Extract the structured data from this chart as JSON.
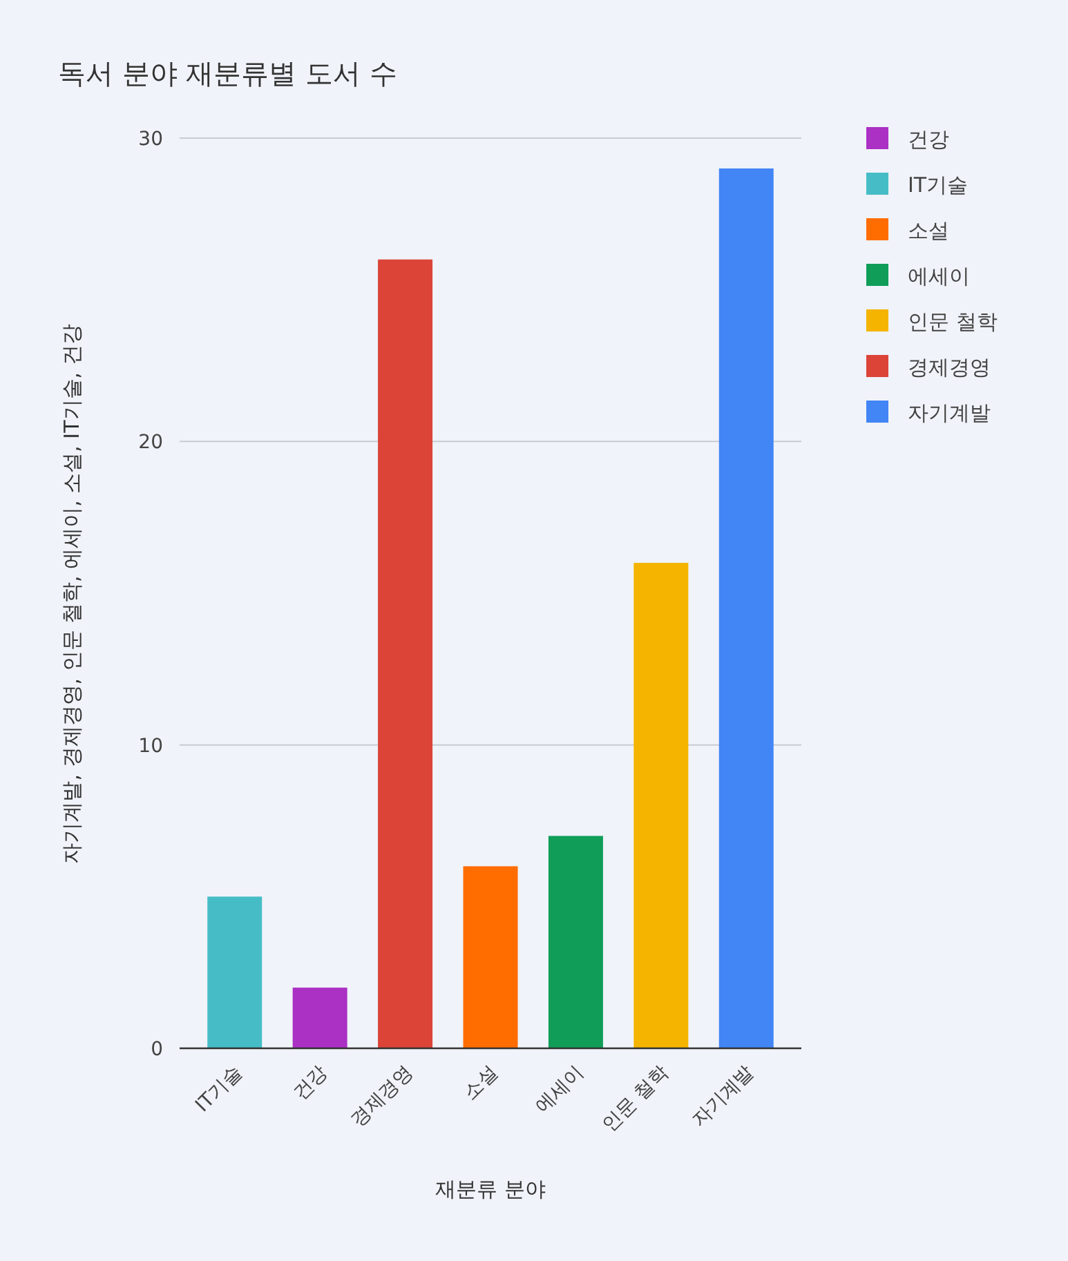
{
  "chart_data": {
    "type": "bar",
    "title": "독서 분야 재분류별 도서 수",
    "xlabel": "재분류 분야",
    "ylabel": "자기계발, 경제경영, 인문 철학, 에세이, 소설, IT기술, 건강",
    "categories": [
      "IT기술",
      "건강",
      "경제경영",
      "소설",
      "에세이",
      "인문 철학",
      "자기계발"
    ],
    "series": [
      {
        "name": "건강",
        "color": "#ab30c4",
        "values": [
          null,
          2,
          null,
          null,
          null,
          null,
          null
        ]
      },
      {
        "name": "IT기술",
        "color": "#46bdc6",
        "values": [
          5,
          null,
          null,
          null,
          null,
          null,
          null
        ]
      },
      {
        "name": "소설",
        "color": "#ff6d01",
        "values": [
          null,
          null,
          null,
          6,
          null,
          null,
          null
        ]
      },
      {
        "name": "에세이",
        "color": "#0f9d58",
        "values": [
          null,
          null,
          null,
          null,
          7,
          null,
          null
        ]
      },
      {
        "name": "인문 철학",
        "color": "#f4b400",
        "values": [
          null,
          null,
          null,
          null,
          null,
          16,
          null
        ]
      },
      {
        "name": "경제경영",
        "color": "#db4437",
        "values": [
          null,
          null,
          26,
          null,
          null,
          null,
          null
        ]
      },
      {
        "name": "자기계발",
        "color": "#4285f4",
        "values": [
          null,
          null,
          null,
          null,
          null,
          null,
          29
        ]
      }
    ],
    "ylim": [
      0,
      30
    ],
    "yticks": [
      0,
      10,
      20,
      30
    ],
    "grid": "y",
    "legend": "right"
  }
}
